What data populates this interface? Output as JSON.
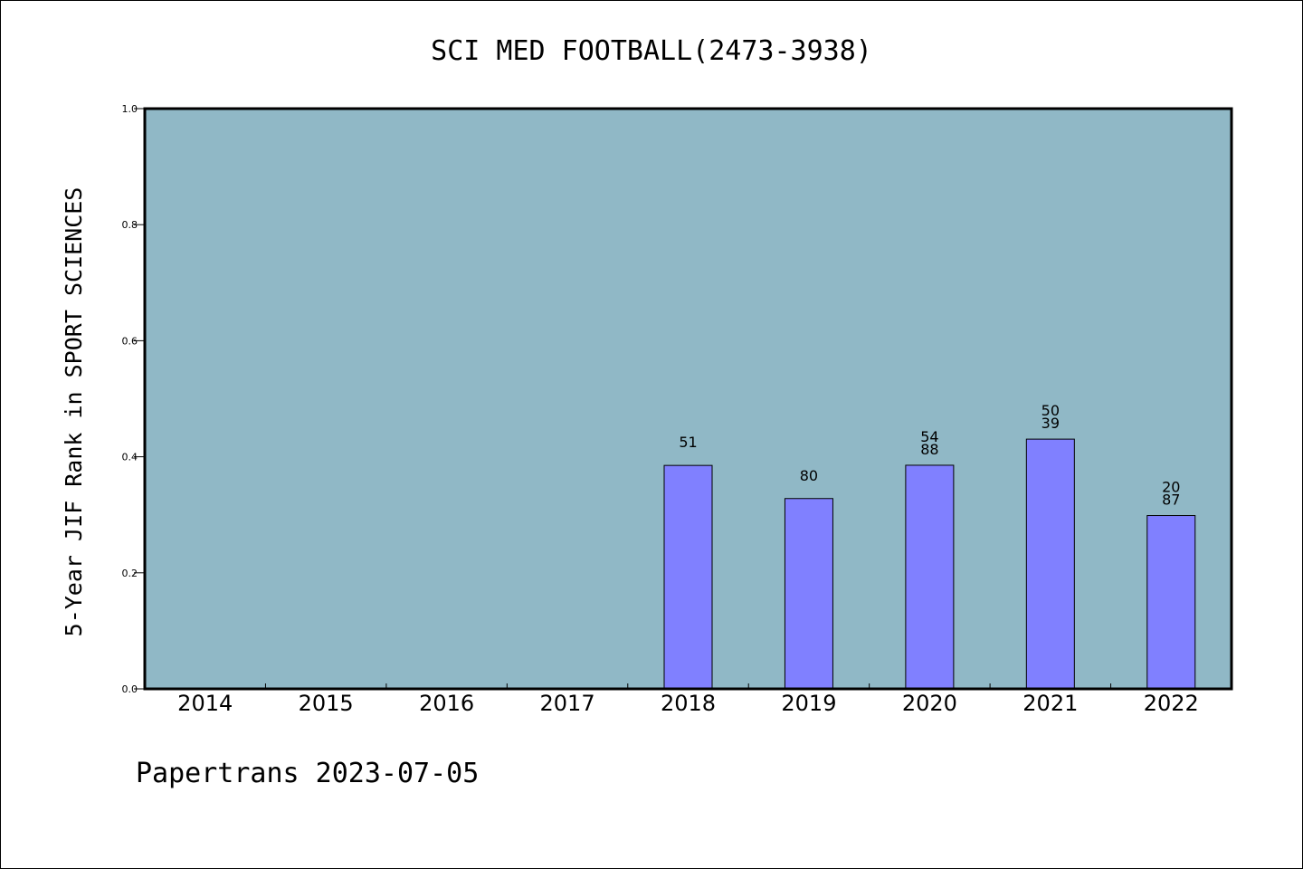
{
  "chart_data": {
    "type": "bar",
    "title": "SCI MED FOOTBALL(2473-3938)",
    "ylabel": "5-Year JIF Rank in SPORT SCIENCES",
    "xlabel": "",
    "footer": "Papertrans 2023-07-05",
    "categories": [
      "2014",
      "2015",
      "2016",
      "2017",
      "2018",
      "2019",
      "2020",
      "2021",
      "2022"
    ],
    "values": [
      null,
      null,
      null,
      null,
      0.3851,
      0.328,
      0.3854,
      0.4304,
      0.2987
    ],
    "bar_labels": [
      [],
      [],
      [],
      [],
      [
        "51"
      ],
      [
        "80"
      ],
      [
        "54",
        "88"
      ],
      [
        "50",
        "39"
      ],
      [
        "20",
        "87"
      ]
    ],
    "ylim": [
      0.0,
      1.0
    ],
    "yticks": [
      "0.0",
      "0.2",
      "0.4",
      "0.6",
      "0.8",
      "1.0"
    ],
    "colors": {
      "plot_background": "#90b8c6",
      "bar_fill": "#8080ff",
      "bar_stroke": "#000000"
    },
    "grid": false,
    "legend": "none"
  }
}
